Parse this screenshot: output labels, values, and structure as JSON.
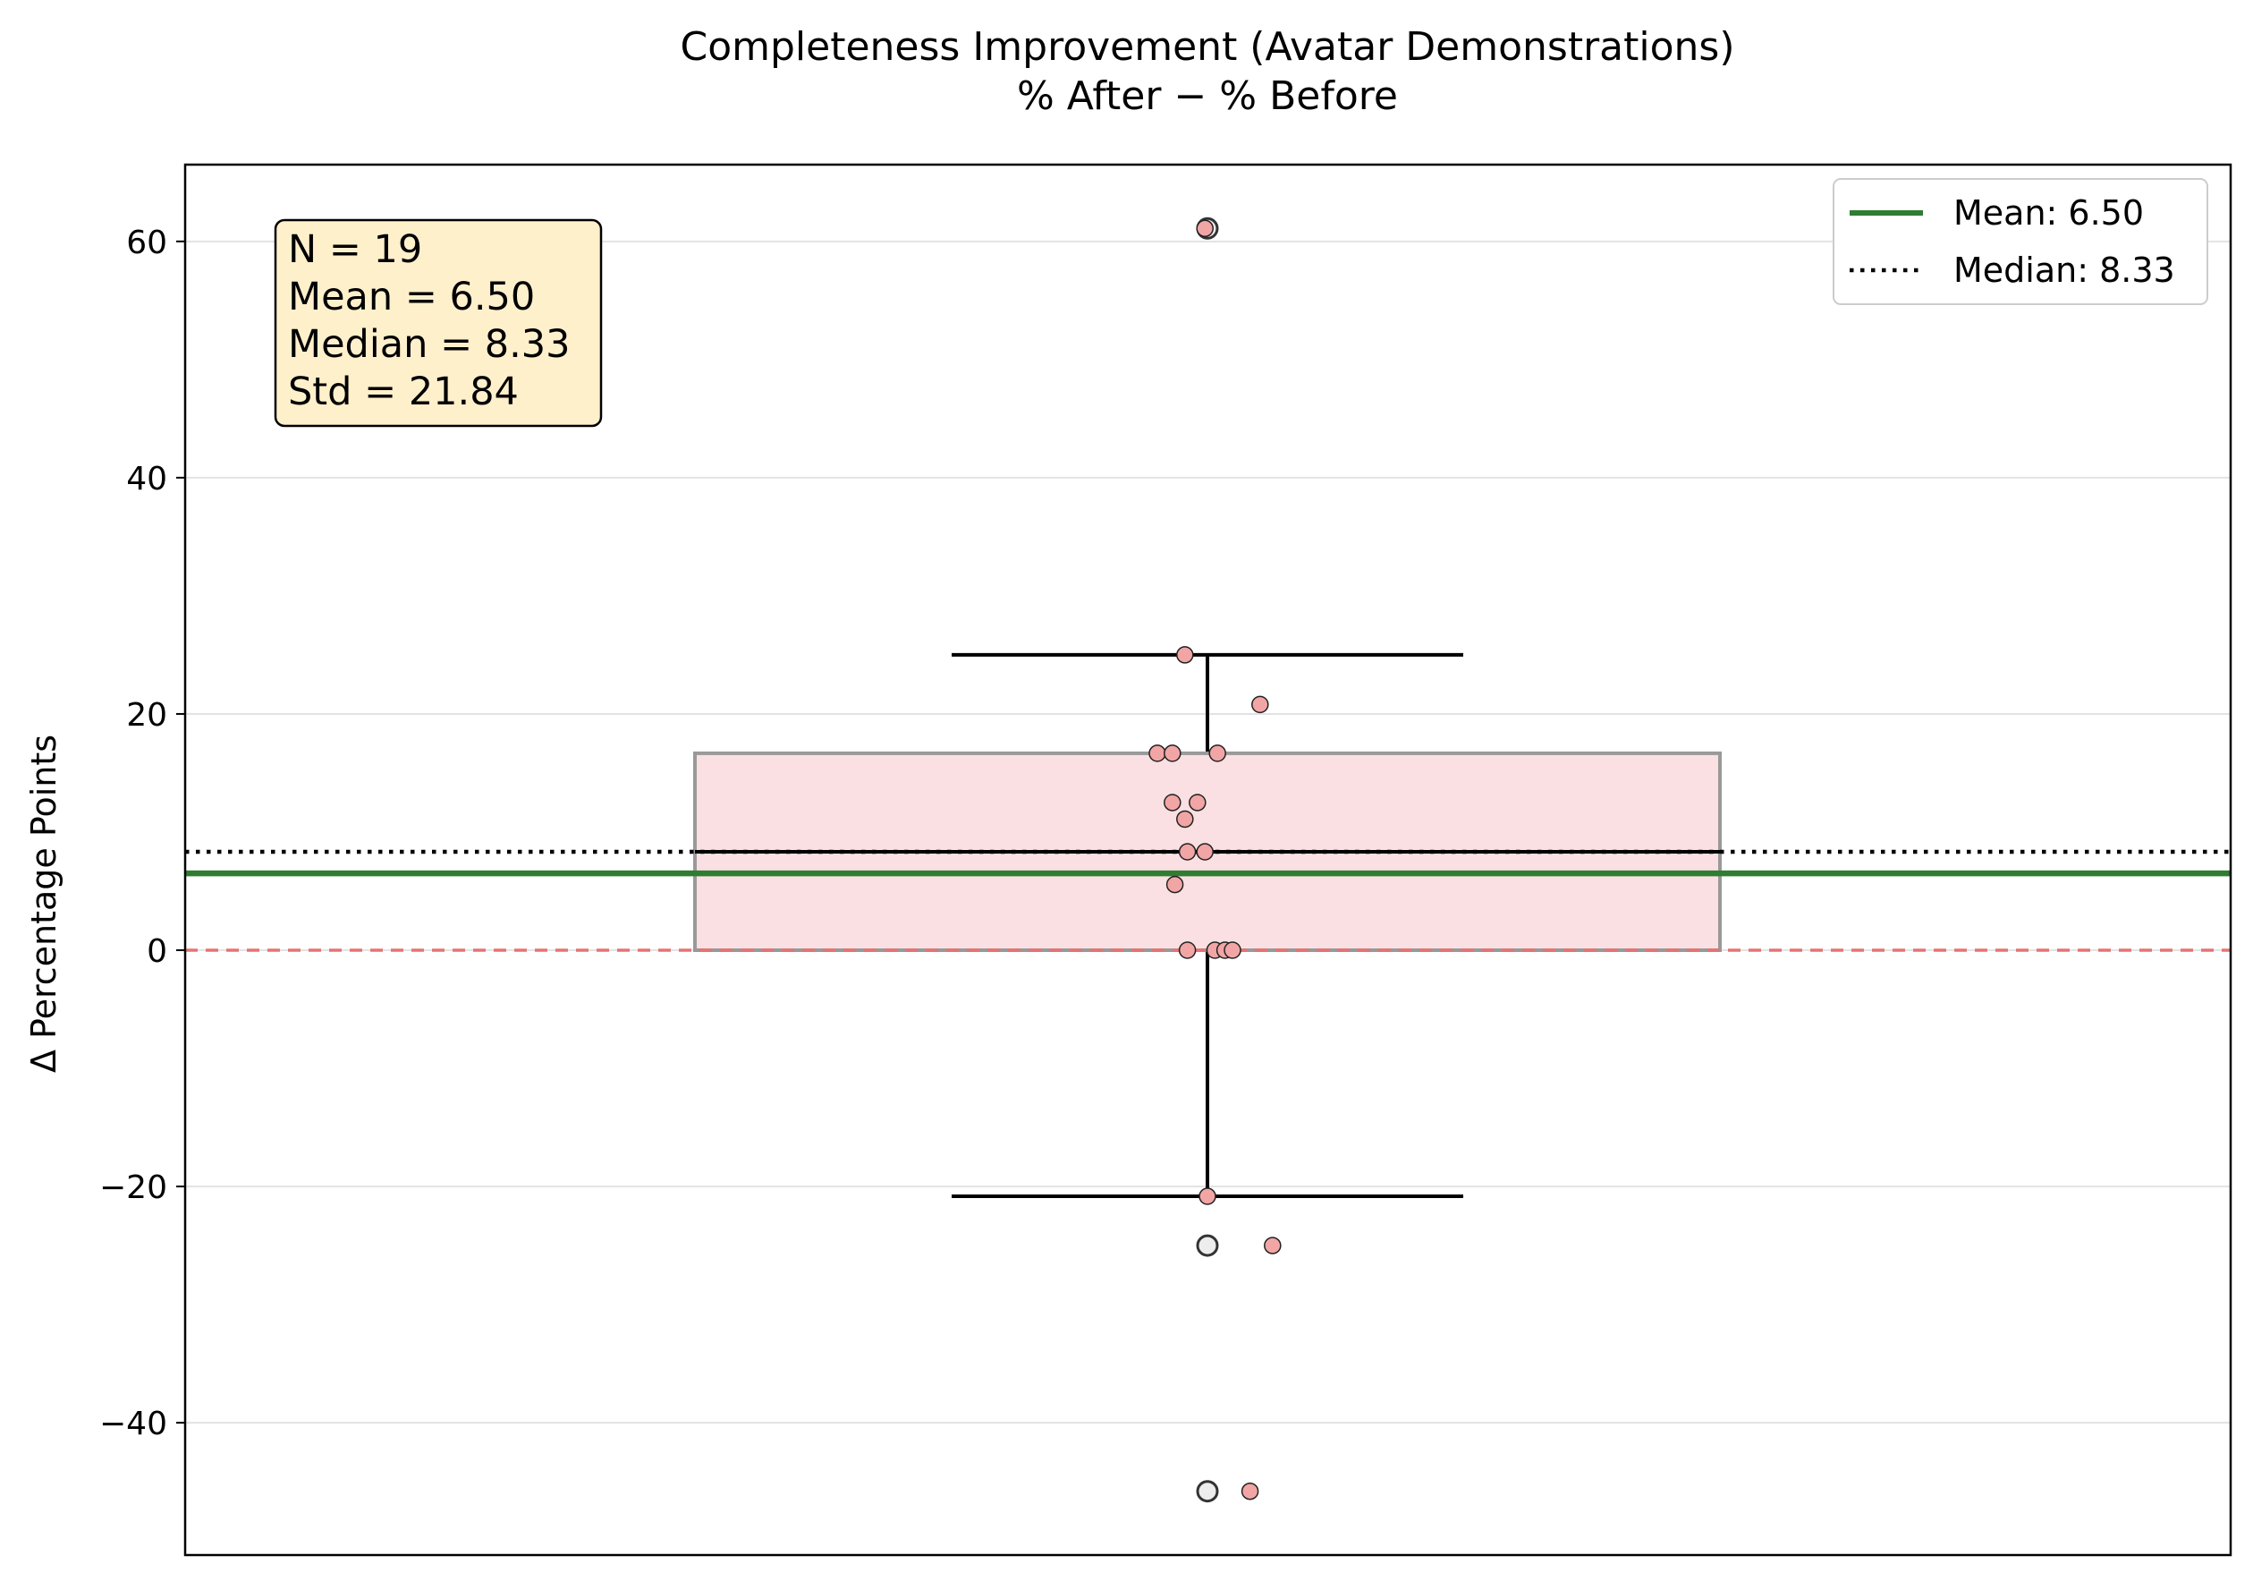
{
  "chart_data": {
    "type": "box",
    "title": "Completeness Improvement (Avatar Demonstrations)",
    "subtitle": "% After − % Before",
    "xlabel": "",
    "ylabel": "Δ Percentage Points",
    "ylim": [
      -51.2,
      66.5
    ],
    "yticks": [
      -40,
      -20,
      0,
      20,
      40,
      60
    ],
    "ytick_labels": [
      "−40",
      "−20",
      "0",
      "20",
      "40",
      "60"
    ],
    "grid": "horizontal",
    "box": {
      "q1": 0.0,
      "median": 8.33,
      "q3": 16.67,
      "whisker_low": -20.83,
      "whisker_high": 25.0,
      "color": "#f4b6bb"
    },
    "outliers": [
      61.1,
      -25.0,
      -45.8
    ],
    "points": [
      {
        "offset": -0.01,
        "y": 61.1
      },
      {
        "offset": -0.09,
        "y": 25.0
      },
      {
        "offset": 0.21,
        "y": 20.8
      },
      {
        "offset": -0.2,
        "y": 16.67
      },
      {
        "offset": -0.14,
        "y": 16.67
      },
      {
        "offset": 0.04,
        "y": 16.67
      },
      {
        "offset": -0.14,
        "y": 12.5
      },
      {
        "offset": -0.04,
        "y": 12.5
      },
      {
        "offset": -0.09,
        "y": 11.1
      },
      {
        "offset": -0.08,
        "y": 8.33
      },
      {
        "offset": -0.01,
        "y": 8.33
      },
      {
        "offset": -0.13,
        "y": 5.56
      },
      {
        "offset": -0.08,
        "y": 0.0
      },
      {
        "offset": 0.03,
        "y": 0.0
      },
      {
        "offset": 0.07,
        "y": 0.0
      },
      {
        "offset": 0.1,
        "y": 0.0
      },
      {
        "offset": 0.0,
        "y": -20.83
      },
      {
        "offset": 0.26,
        "y": -25.0
      },
      {
        "offset": 0.17,
        "y": -45.8
      }
    ],
    "point_color": "#f2a5a5",
    "lines": {
      "mean": {
        "value": 6.5,
        "label": "Mean: 6.50",
        "color": "#2e7d32",
        "style": "solid"
      },
      "median": {
        "value": 8.33,
        "label": "Median: 8.33",
        "color": "#000000",
        "style": "dotted"
      },
      "zero": {
        "value": 0,
        "color": "#e57373",
        "style": "dashed"
      }
    },
    "legend": {
      "location": "top-right",
      "entries": [
        "Mean: 6.50",
        "Median: 8.33"
      ]
    },
    "stats_box": {
      "location": "top-left",
      "lines": [
        "N = 19",
        "Mean = 6.50",
        "Median = 8.33",
        "Std = 21.84"
      ],
      "background": "#fff0cc"
    }
  }
}
